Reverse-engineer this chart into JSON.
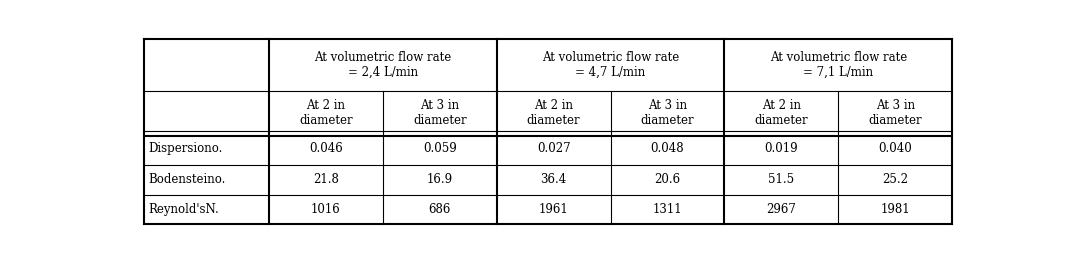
{
  "col_headers_level1": [
    "",
    "At volumetric flow rate\n= 2,4 L/min",
    "At volumetric flow rate\n= 4,7 L/min",
    "At volumetric flow rate\n= 7,1 L/min"
  ],
  "col_headers_level2": [
    "",
    "At 2 in\ndiameter",
    "At 3 in\ndiameter",
    "At 2 in\ndiameter",
    "At 3 in\ndiameter",
    "At 2 in\ndiameter",
    "At 3 in\ndiameter"
  ],
  "row_labels": [
    "Dispersiono.",
    "Bodensteino.",
    "Reynold'sN."
  ],
  "data": [
    [
      "0.046",
      "0.059",
      "0.027",
      "0.048",
      "0.019",
      "0.040"
    ],
    [
      "21.8",
      "16.9",
      "36.4",
      "20.6",
      "51.5",
      "25.2"
    ],
    [
      "1016",
      "686",
      "1961",
      "1311",
      "2967",
      "1981"
    ]
  ],
  "background_color": "#ffffff",
  "border_color": "#000000",
  "text_color": "#000000",
  "header_fontsize": 8.5,
  "data_fontsize": 8.5
}
